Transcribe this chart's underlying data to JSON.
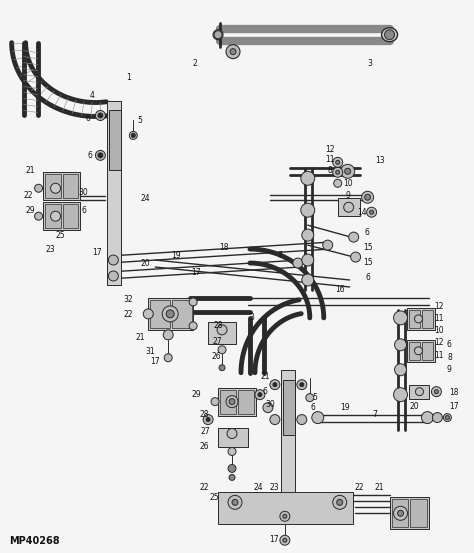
{
  "watermark": "MP40268",
  "bg_color": "#f5f5f5",
  "fig_width": 4.74,
  "fig_height": 5.53,
  "dpi": 100,
  "line_color": "#2a2a2a",
  "label_fontsize": 5.5,
  "watermark_fontsize": 7
}
